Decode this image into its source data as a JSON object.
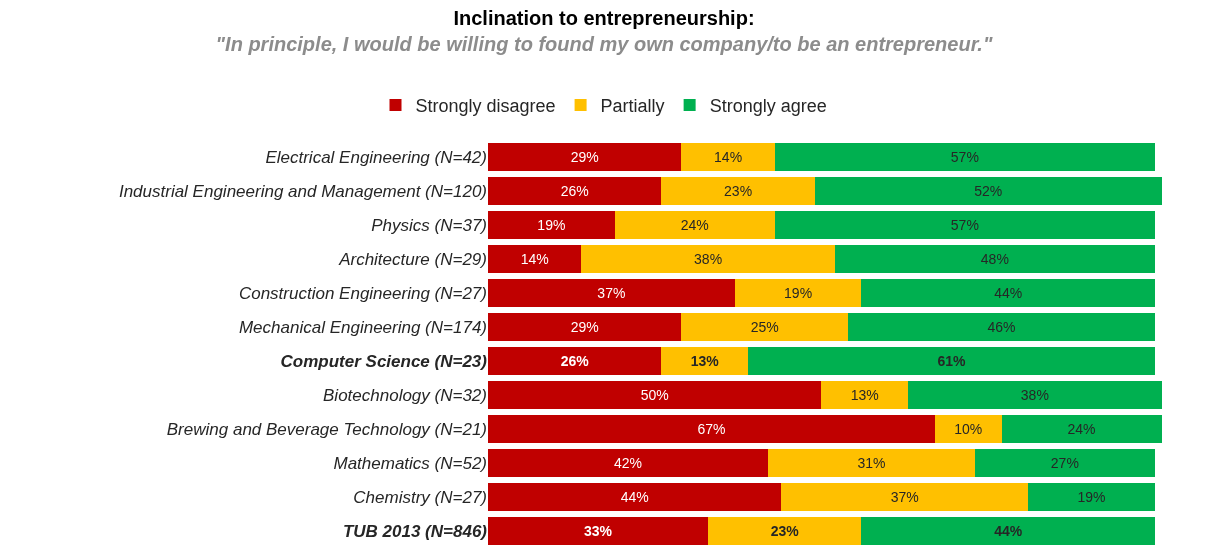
{
  "chart_data": {
    "type": "bar",
    "orientation": "horizontal",
    "stacked": true,
    "legend": "top",
    "title": "Inclination to entrepreneurship:",
    "subtitle": "\"In principle, I would be willing to found my own company/to be an entrepreneur.\"",
    "categories": [
      "Electrical Engineering (N=42)",
      "Industrial Engineering and Management (N=120)",
      "Physics (N=37)",
      "Architecture (N=29)",
      "Construction Engineering (N=27)",
      "Mechanical Engineering (N=174)",
      "Computer Science (N=23)",
      "Biotechnology (N=32)",
      "Brewing and Beverage Technology (N=21)",
      "Mathematics (N=52)",
      "Chemistry (N=27)",
      "TUB 2013 (N=846)"
    ],
    "series": [
      {
        "name": "Strongly disagree",
        "color": "#c00000",
        "values": [
          29,
          26,
          19,
          14,
          37,
          29,
          26,
          50,
          67,
          42,
          44,
          33
        ],
        "value_labels": [
          "29%",
          "26%",
          "19%",
          "14%",
          "37%",
          "29%",
          "26%",
          "50%",
          "67%",
          "42%",
          "44%",
          "33%"
        ]
      },
      {
        "name": "Partially",
        "color": "#ffc000",
        "values": [
          14,
          23,
          24,
          38,
          19,
          25,
          13,
          13,
          10,
          31,
          37,
          23
        ],
        "value_labels": [
          "14%",
          "23%",
          "24%",
          "38%",
          "19%",
          "25%",
          "13%",
          "13%",
          "10%",
          "31%",
          "37%",
          "23%"
        ]
      },
      {
        "name": "Strongly agree",
        "color": "#00b050",
        "values": [
          57,
          52,
          57,
          48,
          44,
          46,
          61,
          38,
          24,
          27,
          19,
          44
        ],
        "value_labels": [
          "57%",
          "52%",
          "57%",
          "48%",
          "44%",
          "46%",
          "61%",
          "38%",
          "24%",
          "27%",
          "19%",
          "44%"
        ]
      }
    ]
  }
}
